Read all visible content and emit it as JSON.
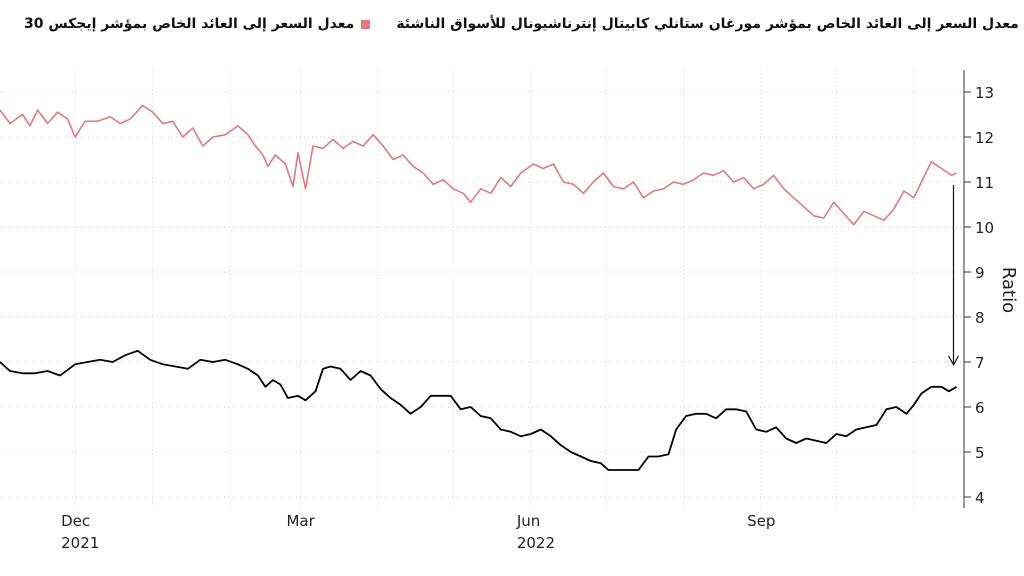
{
  "legend": {
    "black_label": "معدل السعر إلى العائد الخاص بمؤشر مورغان ستانلي كابيتال إنترناشيونال للأسواق الناشئة",
    "black_color": "#000000",
    "red_label": "معدل السعر إلى العائد الخاص بمؤشر إيجكس 30",
    "red_color": "#e07a7f"
  },
  "chart_data": {
    "type": "line",
    "ylabel": "Ratio",
    "ylim": [
      4,
      13
    ],
    "yticks": [
      4,
      5,
      6,
      7,
      8,
      9,
      10,
      11,
      12,
      13
    ],
    "y_axis_position": "right",
    "xlim": [
      "2021-11-01",
      "2022-11-21"
    ],
    "xticks": [
      {
        "date": "2021-12-01",
        "label": "Dec",
        "sublabel": "2021"
      },
      {
        "date": "2022-03-01",
        "label": "Mar",
        "sublabel": ""
      },
      {
        "date": "2022-06-01",
        "label": "Jun",
        "sublabel": "2022"
      },
      {
        "date": "2022-09-01",
        "label": "Sep",
        "sublabel": ""
      }
    ],
    "grid": true,
    "annotation": "downward arrow from the EGX 30 line to the MSCI Emerging Markets line at the latest date",
    "series": [
      {
        "name": "معدل السعر إلى العائد الخاص بمؤشر إيجكس 30",
        "color": "#e07a7f",
        "points": [
          [
            "2021-11-01",
            12.6
          ],
          [
            "2021-11-05",
            12.3
          ],
          [
            "2021-11-10",
            12.5
          ],
          [
            "2021-11-13",
            12.25
          ],
          [
            "2021-11-16",
            12.6
          ],
          [
            "2021-11-20",
            12.3
          ],
          [
            "2021-11-24",
            12.55
          ],
          [
            "2021-11-28",
            12.4
          ],
          [
            "2021-12-01",
            12.0
          ],
          [
            "2021-12-05",
            12.35
          ],
          [
            "2021-12-10",
            12.35
          ],
          [
            "2021-12-15",
            12.45
          ],
          [
            "2021-12-19",
            12.3
          ],
          [
            "2021-12-23",
            12.4
          ],
          [
            "2021-12-28",
            12.7
          ],
          [
            "2022-01-01",
            12.55
          ],
          [
            "2022-01-05",
            12.3
          ],
          [
            "2022-01-09",
            12.35
          ],
          [
            "2022-01-13",
            12.0
          ],
          [
            "2022-01-17",
            12.2
          ],
          [
            "2022-01-21",
            11.8
          ],
          [
            "2022-01-25",
            12.0
          ],
          [
            "2022-01-30",
            12.05
          ],
          [
            "2022-02-04",
            12.25
          ],
          [
            "2022-02-08",
            12.05
          ],
          [
            "2022-02-11",
            11.8
          ],
          [
            "2022-02-14",
            11.6
          ],
          [
            "2022-02-16",
            11.35
          ],
          [
            "2022-02-19",
            11.6
          ],
          [
            "2022-02-23",
            11.4
          ],
          [
            "2022-02-26",
            10.9
          ],
          [
            "2022-02-28",
            11.65
          ],
          [
            "2022-03-03",
            10.85
          ],
          [
            "2022-03-06",
            11.8
          ],
          [
            "2022-03-10",
            11.75
          ],
          [
            "2022-03-14",
            11.95
          ],
          [
            "2022-03-18",
            11.75
          ],
          [
            "2022-03-22",
            11.9
          ],
          [
            "2022-03-26",
            11.8
          ],
          [
            "2022-03-30",
            12.05
          ],
          [
            "2022-04-03",
            11.8
          ],
          [
            "2022-04-07",
            11.5
          ],
          [
            "2022-04-11",
            11.6
          ],
          [
            "2022-04-15",
            11.35
          ],
          [
            "2022-04-19",
            11.2
          ],
          [
            "2022-04-23",
            10.95
          ],
          [
            "2022-04-27",
            11.05
          ],
          [
            "2022-05-01",
            10.85
          ],
          [
            "2022-05-05",
            10.75
          ],
          [
            "2022-05-08",
            10.55
          ],
          [
            "2022-05-12",
            10.85
          ],
          [
            "2022-05-16",
            10.75
          ],
          [
            "2022-05-20",
            11.1
          ],
          [
            "2022-05-24",
            10.9
          ],
          [
            "2022-05-28",
            11.2
          ],
          [
            "2022-06-02",
            11.4
          ],
          [
            "2022-06-06",
            11.3
          ],
          [
            "2022-06-10",
            11.4
          ],
          [
            "2022-06-14",
            11.0
          ],
          [
            "2022-06-18",
            10.95
          ],
          [
            "2022-06-22",
            10.75
          ],
          [
            "2022-06-26",
            11.0
          ],
          [
            "2022-06-30",
            11.2
          ],
          [
            "2022-07-04",
            10.9
          ],
          [
            "2022-07-08",
            10.85
          ],
          [
            "2022-07-12",
            11.0
          ],
          [
            "2022-07-16",
            10.65
          ],
          [
            "2022-07-20",
            10.8
          ],
          [
            "2022-07-24",
            10.85
          ],
          [
            "2022-07-28",
            11.0
          ],
          [
            "2022-08-01",
            10.95
          ],
          [
            "2022-08-05",
            11.05
          ],
          [
            "2022-08-09",
            11.2
          ],
          [
            "2022-08-13",
            11.15
          ],
          [
            "2022-08-17",
            11.25
          ],
          [
            "2022-08-21",
            11.0
          ],
          [
            "2022-08-25",
            11.1
          ],
          [
            "2022-08-29",
            10.85
          ],
          [
            "2022-09-02",
            10.95
          ],
          [
            "2022-09-06",
            11.15
          ],
          [
            "2022-09-10",
            10.85
          ],
          [
            "2022-09-14",
            10.65
          ],
          [
            "2022-09-18",
            10.45
          ],
          [
            "2022-09-22",
            10.25
          ],
          [
            "2022-09-26",
            10.2
          ],
          [
            "2022-09-30",
            10.55
          ],
          [
            "2022-10-04",
            10.3
          ],
          [
            "2022-10-08",
            10.05
          ],
          [
            "2022-10-12",
            10.35
          ],
          [
            "2022-10-16",
            10.25
          ],
          [
            "2022-10-20",
            10.15
          ],
          [
            "2022-10-24",
            10.4
          ],
          [
            "2022-10-28",
            10.8
          ],
          [
            "2022-11-01",
            10.65
          ],
          [
            "2022-11-04",
            11.0
          ],
          [
            "2022-11-08",
            11.45
          ],
          [
            "2022-11-12",
            11.3
          ],
          [
            "2022-11-16",
            11.15
          ],
          [
            "2022-11-18",
            11.2
          ]
        ]
      },
      {
        "name": "معدل السعر إلى العائد الخاص بمؤشر مورغان ستانلي كابيتال إنترناشيونال للأسواق الناشئة",
        "color": "#000000",
        "points": [
          [
            "2021-11-01",
            7.0
          ],
          [
            "2021-11-05",
            6.8
          ],
          [
            "2021-11-10",
            6.75
          ],
          [
            "2021-11-15",
            6.75
          ],
          [
            "2021-11-20",
            6.8
          ],
          [
            "2021-11-25",
            6.7
          ],
          [
            "2021-12-01",
            6.95
          ],
          [
            "2021-12-06",
            7.0
          ],
          [
            "2021-12-11",
            7.05
          ],
          [
            "2021-12-16",
            7.0
          ],
          [
            "2021-12-21",
            7.15
          ],
          [
            "2021-12-26",
            7.25
          ],
          [
            "2021-12-31",
            7.05
          ],
          [
            "2022-01-05",
            6.95
          ],
          [
            "2022-01-10",
            6.9
          ],
          [
            "2022-01-15",
            6.85
          ],
          [
            "2022-01-20",
            7.05
          ],
          [
            "2022-01-25",
            7.0
          ],
          [
            "2022-01-30",
            7.05
          ],
          [
            "2022-02-04",
            6.95
          ],
          [
            "2022-02-08",
            6.85
          ],
          [
            "2022-02-12",
            6.7
          ],
          [
            "2022-02-15",
            6.45
          ],
          [
            "2022-02-18",
            6.6
          ],
          [
            "2022-02-21",
            6.5
          ],
          [
            "2022-02-24",
            6.2
          ],
          [
            "2022-02-28",
            6.25
          ],
          [
            "2022-03-03",
            6.15
          ],
          [
            "2022-03-07",
            6.35
          ],
          [
            "2022-03-10",
            6.85
          ],
          [
            "2022-03-13",
            6.9
          ],
          [
            "2022-03-17",
            6.85
          ],
          [
            "2022-03-21",
            6.6
          ],
          [
            "2022-03-25",
            6.8
          ],
          [
            "2022-03-29",
            6.7
          ],
          [
            "2022-04-02",
            6.4
          ],
          [
            "2022-04-06",
            6.2
          ],
          [
            "2022-04-10",
            6.05
          ],
          [
            "2022-04-14",
            5.85
          ],
          [
            "2022-04-18",
            6.0
          ],
          [
            "2022-04-22",
            6.25
          ],
          [
            "2022-04-26",
            6.25
          ],
          [
            "2022-04-30",
            6.25
          ],
          [
            "2022-05-04",
            5.95
          ],
          [
            "2022-05-08",
            6.0
          ],
          [
            "2022-05-12",
            5.8
          ],
          [
            "2022-05-16",
            5.75
          ],
          [
            "2022-05-20",
            5.5
          ],
          [
            "2022-05-24",
            5.45
          ],
          [
            "2022-05-28",
            5.35
          ],
          [
            "2022-06-01",
            5.4
          ],
          [
            "2022-06-05",
            5.5
          ],
          [
            "2022-06-09",
            5.35
          ],
          [
            "2022-06-13",
            5.15
          ],
          [
            "2022-06-17",
            5.0
          ],
          [
            "2022-06-21",
            4.9
          ],
          [
            "2022-06-25",
            4.8
          ],
          [
            "2022-06-29",
            4.75
          ],
          [
            "2022-07-02",
            4.6
          ],
          [
            "2022-07-06",
            4.6
          ],
          [
            "2022-07-10",
            4.6
          ],
          [
            "2022-07-14",
            4.6
          ],
          [
            "2022-07-18",
            4.9
          ],
          [
            "2022-07-22",
            4.9
          ],
          [
            "2022-07-26",
            4.95
          ],
          [
            "2022-07-29",
            5.5
          ],
          [
            "2022-08-02",
            5.8
          ],
          [
            "2022-08-06",
            5.85
          ],
          [
            "2022-08-10",
            5.85
          ],
          [
            "2022-08-14",
            5.75
          ],
          [
            "2022-08-18",
            5.95
          ],
          [
            "2022-08-22",
            5.95
          ],
          [
            "2022-08-26",
            5.9
          ],
          [
            "2022-08-30",
            5.5
          ],
          [
            "2022-09-03",
            5.45
          ],
          [
            "2022-09-07",
            5.55
          ],
          [
            "2022-09-11",
            5.3
          ],
          [
            "2022-09-15",
            5.2
          ],
          [
            "2022-09-19",
            5.3
          ],
          [
            "2022-09-23",
            5.25
          ],
          [
            "2022-09-27",
            5.2
          ],
          [
            "2022-10-01",
            5.4
          ],
          [
            "2022-10-05",
            5.35
          ],
          [
            "2022-10-09",
            5.5
          ],
          [
            "2022-10-13",
            5.55
          ],
          [
            "2022-10-17",
            5.6
          ],
          [
            "2022-10-21",
            5.95
          ],
          [
            "2022-10-25",
            6.0
          ],
          [
            "2022-10-29",
            5.85
          ],
          [
            "2022-11-01",
            6.05
          ],
          [
            "2022-11-04",
            6.3
          ],
          [
            "2022-11-08",
            6.45
          ],
          [
            "2022-11-12",
            6.45
          ],
          [
            "2022-11-15",
            6.35
          ],
          [
            "2022-11-18",
            6.45
          ]
        ]
      }
    ]
  }
}
